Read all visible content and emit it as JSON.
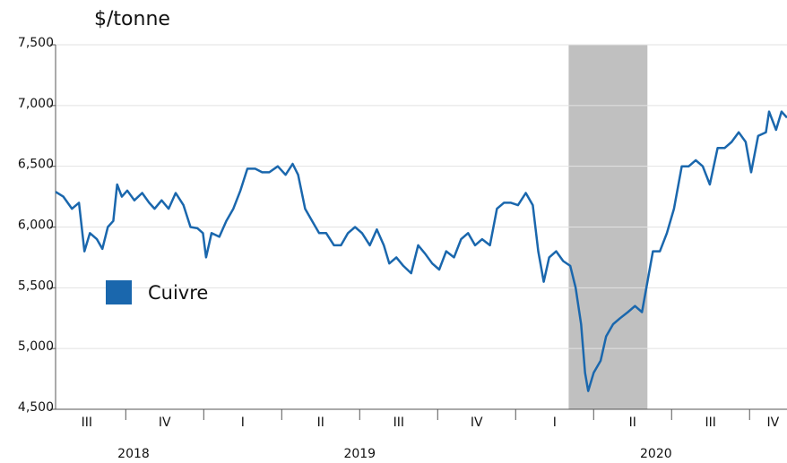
{
  "chart_data": {
    "type": "line",
    "title": "$/tonne",
    "xlim": [
      0.1,
      9.48
    ],
    "ylim": [
      4500,
      7500
    ],
    "yticks": [
      {
        "value": 4500,
        "label": "4,500"
      },
      {
        "value": 5000,
        "label": "5,000"
      },
      {
        "value": 5500,
        "label": "5,500"
      },
      {
        "value": 6000,
        "label": "6,000"
      },
      {
        "value": 6500,
        "label": "6,500"
      },
      {
        "value": 7000,
        "label": "7,000"
      },
      {
        "value": 7500,
        "label": "7,500"
      }
    ],
    "xticks": [
      {
        "value": 0.5,
        "label": "III"
      },
      {
        "value": 1.5,
        "label": "IV"
      },
      {
        "value": 2.5,
        "label": "I"
      },
      {
        "value": 3.5,
        "label": "II"
      },
      {
        "value": 4.5,
        "label": "III"
      },
      {
        "value": 5.5,
        "label": "IV"
      },
      {
        "value": 6.5,
        "label": "I"
      },
      {
        "value": 7.5,
        "label": "II"
      },
      {
        "value": 8.5,
        "label": "III"
      },
      {
        "value": 9.3,
        "label": "IV"
      }
    ],
    "x_dividers": [
      1,
      2,
      3,
      4,
      5,
      6,
      7,
      8,
      9
    ],
    "year_labels": [
      {
        "value": 1.1,
        "label": "2018"
      },
      {
        "value": 4.0,
        "label": "2019"
      },
      {
        "value": 7.8,
        "label": "2020"
      }
    ],
    "shade": [
      6.68,
      7.69
    ],
    "shade_color": "#c0c0c0",
    "grid": true,
    "series": [
      {
        "name": "Cuivre",
        "color": "#1a67ad",
        "x": [
          0.1,
          0.2,
          0.31,
          0.4,
          0.47,
          0.54,
          0.63,
          0.7,
          0.77,
          0.84,
          0.89,
          0.95,
          1.02,
          1.11,
          1.21,
          1.3,
          1.37,
          1.46,
          1.55,
          1.64,
          1.74,
          1.83,
          1.92,
          1.99,
          2.03,
          2.1,
          2.2,
          2.29,
          2.38,
          2.47,
          2.56,
          2.66,
          2.75,
          2.84,
          2.95,
          3.05,
          3.14,
          3.21,
          3.3,
          3.39,
          3.48,
          3.57,
          3.67,
          3.76,
          3.85,
          3.94,
          4.03,
          4.13,
          4.22,
          4.31,
          4.38,
          4.47,
          4.56,
          4.66,
          4.75,
          4.84,
          4.93,
          5.02,
          5.11,
          5.21,
          5.3,
          5.39,
          5.48,
          5.57,
          5.67,
          5.76,
          5.85,
          5.94,
          6.03,
          6.13,
          6.22,
          6.29,
          6.36,
          6.43,
          6.52,
          6.61,
          6.7,
          6.77,
          6.84,
          6.89,
          6.93,
          7.0,
          7.09,
          7.16,
          7.25,
          7.34,
          7.44,
          7.53,
          7.62,
          7.69,
          7.76,
          7.85,
          7.94,
          8.03,
          8.13,
          8.22,
          8.31,
          8.4,
          8.49,
          8.59,
          8.68,
          8.77,
          8.86,
          8.95,
          9.02,
          9.11,
          9.21,
          9.25,
          9.34,
          9.41,
          9.48
        ],
        "values": [
          6290,
          6250,
          6150,
          6200,
          5800,
          5950,
          5900,
          5820,
          6000,
          6050,
          6350,
          6250,
          6300,
          6220,
          6280,
          6200,
          6150,
          6220,
          6150,
          6280,
          6180,
          6000,
          5990,
          5950,
          5750,
          5950,
          5920,
          6050,
          6150,
          6300,
          6480,
          6480,
          6450,
          6450,
          6500,
          6430,
          6520,
          6430,
          6150,
          6050,
          5950,
          5950,
          5850,
          5850,
          5950,
          6000,
          5950,
          5850,
          5980,
          5850,
          5700,
          5750,
          5680,
          5620,
          5850,
          5780,
          5700,
          5650,
          5800,
          5750,
          5900,
          5950,
          5850,
          5900,
          5850,
          6150,
          6200,
          6200,
          6180,
          6280,
          6180,
          5800,
          5550,
          5750,
          5800,
          5720,
          5680,
          5500,
          5200,
          4800,
          4650,
          4800,
          4900,
          5100,
          5200,
          5250,
          5300,
          5350,
          5300,
          5550,
          5800,
          5800,
          5950,
          6150,
          6500,
          6500,
          6550,
          6500,
          6350,
          6650,
          6650,
          6700,
          6780,
          6700,
          6450,
          6750,
          6780,
          6950,
          6800,
          6950,
          6900
        ]
      }
    ]
  }
}
